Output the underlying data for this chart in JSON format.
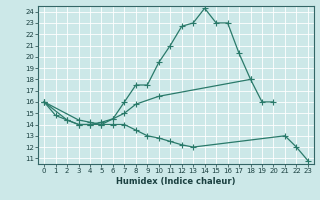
{
  "xlabel": "Humidex (Indice chaleur)",
  "background_color": "#cce8e8",
  "grid_color": "#aacccc",
  "line_color": "#2a7a6a",
  "xlim": [
    -0.5,
    23.5
  ],
  "ylim": [
    10.5,
    24.5
  ],
  "yticks": [
    11,
    12,
    13,
    14,
    15,
    16,
    17,
    18,
    19,
    20,
    21,
    22,
    23,
    24
  ],
  "xticks": [
    0,
    1,
    2,
    3,
    4,
    5,
    6,
    7,
    8,
    9,
    10,
    11,
    12,
    13,
    14,
    15,
    16,
    17,
    18,
    19,
    20,
    21,
    22,
    23
  ],
  "line1_x": [
    0,
    1,
    2,
    3,
    4,
    5,
    6,
    7,
    8,
    9,
    10,
    11,
    12,
    13,
    14,
    15,
    16,
    17,
    18
  ],
  "line1_y": [
    16.0,
    14.8,
    14.4,
    14.0,
    14.0,
    14.0,
    14.5,
    16.0,
    17.5,
    17.5,
    19.5,
    21.0,
    22.7,
    23.0,
    24.3,
    23.0,
    23.0,
    20.3,
    18.0
  ],
  "line2_x": [
    0,
    2,
    3,
    4,
    5,
    6,
    7,
    8,
    10,
    18,
    19,
    20
  ],
  "line2_y": [
    16.0,
    14.4,
    14.0,
    14.0,
    14.2,
    14.5,
    15.0,
    15.8,
    16.5,
    18.0,
    16.0,
    16.0
  ],
  "line3_x": [
    0,
    3,
    4,
    5,
    6,
    7,
    8,
    9,
    10,
    11,
    12,
    13,
    21,
    22,
    23
  ],
  "line3_y": [
    16.0,
    14.4,
    14.2,
    14.0,
    14.0,
    14.0,
    13.5,
    13.0,
    12.8,
    12.5,
    12.2,
    12.0,
    13.0,
    12.0,
    10.8
  ],
  "line_width": 0.9,
  "marker_size": 4.0,
  "tick_fontsize": 5.0,
  "xlabel_fontsize": 6.0
}
